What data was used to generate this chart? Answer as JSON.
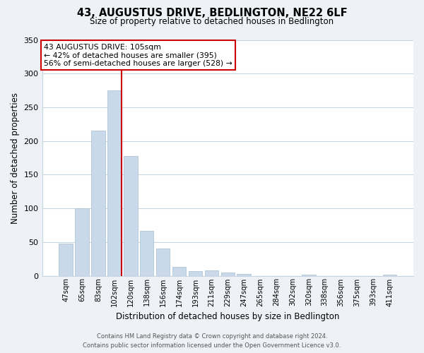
{
  "title": "43, AUGUSTUS DRIVE, BEDLINGTON, NE22 6LF",
  "subtitle": "Size of property relative to detached houses in Bedlington",
  "xlabel": "Distribution of detached houses by size in Bedlington",
  "ylabel": "Number of detached properties",
  "bar_labels": [
    "47sqm",
    "65sqm",
    "83sqm",
    "102sqm",
    "120sqm",
    "138sqm",
    "156sqm",
    "174sqm",
    "193sqm",
    "211sqm",
    "229sqm",
    "247sqm",
    "265sqm",
    "284sqm",
    "302sqm",
    "320sqm",
    "338sqm",
    "356sqm",
    "375sqm",
    "393sqm",
    "411sqm"
  ],
  "bar_values": [
    48,
    100,
    215,
    275,
    178,
    67,
    40,
    13,
    7,
    8,
    5,
    3,
    0,
    0,
    0,
    2,
    0,
    0,
    0,
    0,
    2
  ],
  "bar_color": "#c9d9ea",
  "bar_edge_color": "#aec6d8",
  "vline_color": "#cc0000",
  "annotation_title": "43 AUGUSTUS DRIVE: 105sqm",
  "annotation_line1": "← 42% of detached houses are smaller (395)",
  "annotation_line2": "56% of semi-detached houses are larger (528) →",
  "annotation_box_edge_color": "#cc0000",
  "ylim": [
    0,
    350
  ],
  "yticks": [
    0,
    50,
    100,
    150,
    200,
    250,
    300,
    350
  ],
  "footer_line1": "Contains HM Land Registry data © Crown copyright and database right 2024.",
  "footer_line2": "Contains public sector information licensed under the Open Government Licence v3.0.",
  "bg_color": "#eef2f7",
  "plot_bg_color": "#ffffff",
  "grid_color": "#c8d4e0"
}
